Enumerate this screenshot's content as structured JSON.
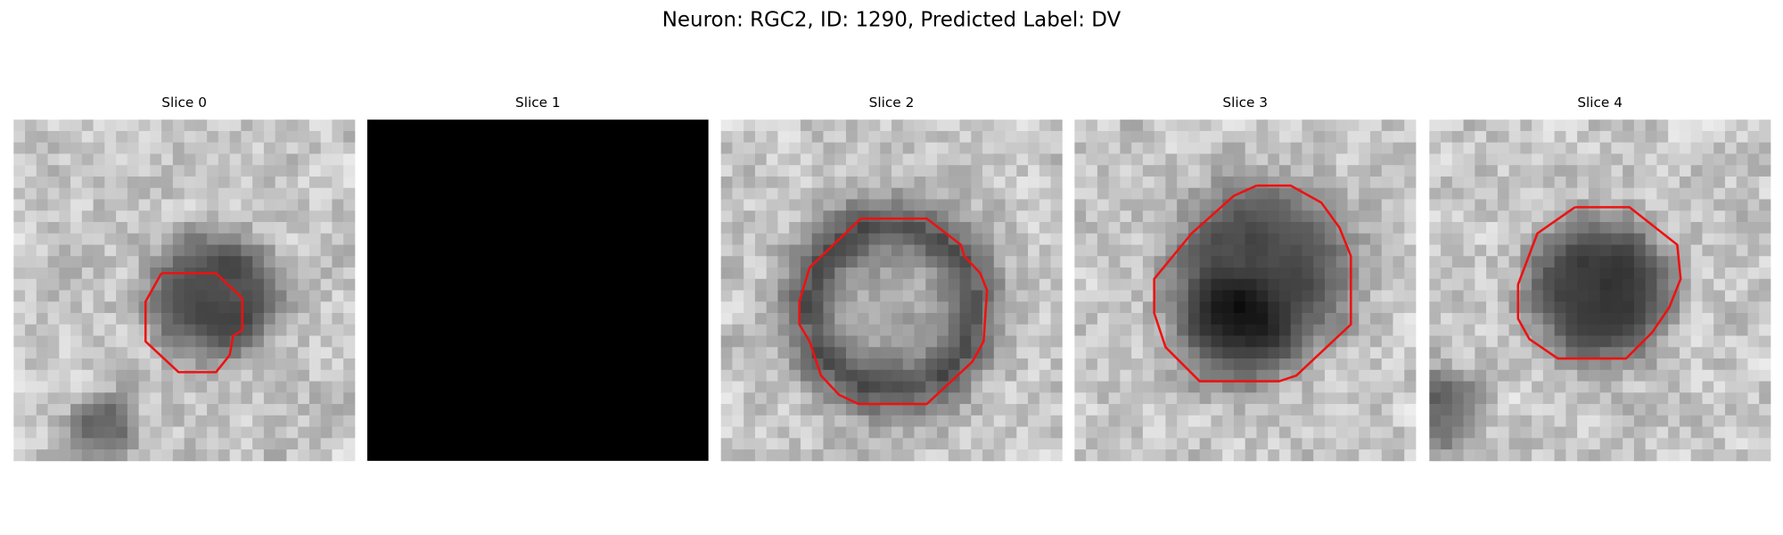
{
  "title": "Neuron: RGC2, ID: 1290, Predicted Label: DV",
  "panels": [
    {
      "title": "Slice 0"
    },
    {
      "title": "Slice 1"
    },
    {
      "title": "Slice 2"
    },
    {
      "title": "Slice 3"
    },
    {
      "title": "Slice 4"
    }
  ]
}
